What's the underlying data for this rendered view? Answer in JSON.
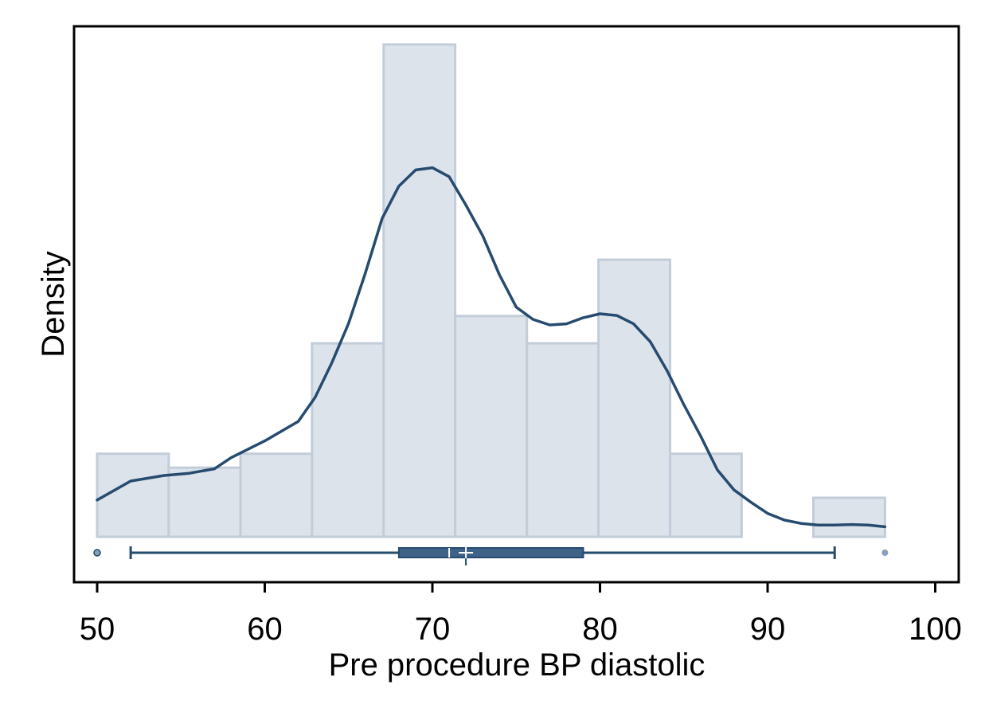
{
  "chart_data": {
    "type": "bar",
    "subtype": "histogram with kernel density line and horizontal box plot",
    "xlabel": "Pre procedure BP diastolic",
    "ylabel": "Density",
    "xlim": [
      48.6,
      101.5
    ],
    "x_ticks": [
      50,
      60,
      70,
      80,
      90,
      100
    ],
    "x_tick_labels": [
      "50",
      "60",
      "70",
      "80",
      "90",
      "100"
    ],
    "y_ticks_shown": false,
    "grid": false,
    "legend": "none",
    "histogram": {
      "bin_edges": [
        50,
        54.27,
        58.55,
        62.82,
        67.09,
        71.36,
        75.64,
        79.91,
        84.18,
        88.45,
        92.73,
        97
      ],
      "heights": [
        0.0149,
        0.0124,
        0.0149,
        0.0347,
        0.0883,
        0.0396,
        0.0347,
        0.0497,
        0.0149,
        0,
        0.007
      ]
    },
    "density": {
      "x": [
        50,
        52,
        54,
        55.5,
        57,
        58,
        60,
        62,
        63,
        64,
        65,
        66,
        67,
        68,
        69,
        70,
        71,
        72,
        73,
        74,
        75,
        76,
        77,
        78,
        79,
        80,
        81,
        82,
        83,
        84,
        85,
        86,
        87,
        88,
        89,
        90,
        91,
        92,
        93,
        94,
        95,
        96,
        97
      ],
      "y": [
        0.0066,
        0.01,
        0.011,
        0.0114,
        0.0122,
        0.0142,
        0.0172,
        0.0207,
        0.025,
        0.0312,
        0.0383,
        0.0473,
        0.0571,
        0.0629,
        0.0658,
        0.0662,
        0.0646,
        0.0595,
        0.054,
        0.047,
        0.0412,
        0.039,
        0.038,
        0.0382,
        0.0393,
        0.04,
        0.0397,
        0.0382,
        0.035,
        0.0298,
        0.0237,
        0.0181,
        0.012,
        0.0084,
        0.0062,
        0.0042,
        0.003,
        0.0024,
        0.0021,
        0.0021,
        0.0022,
        0.0021,
        0.0018
      ]
    },
    "boxplot": {
      "whisker_low": 52,
      "q1": 68,
      "median": 71,
      "mean": 72,
      "q3": 79,
      "whisker_high": 94,
      "outliers": [
        50,
        97
      ]
    },
    "colors": {
      "bar_fill": "#dde3eb",
      "bar_stroke": "#c2cdd9",
      "line": "#264b6f",
      "box_fill": "#3f6288",
      "box_stroke": "#264b6f",
      "outlier": "#8a9fb8"
    }
  }
}
